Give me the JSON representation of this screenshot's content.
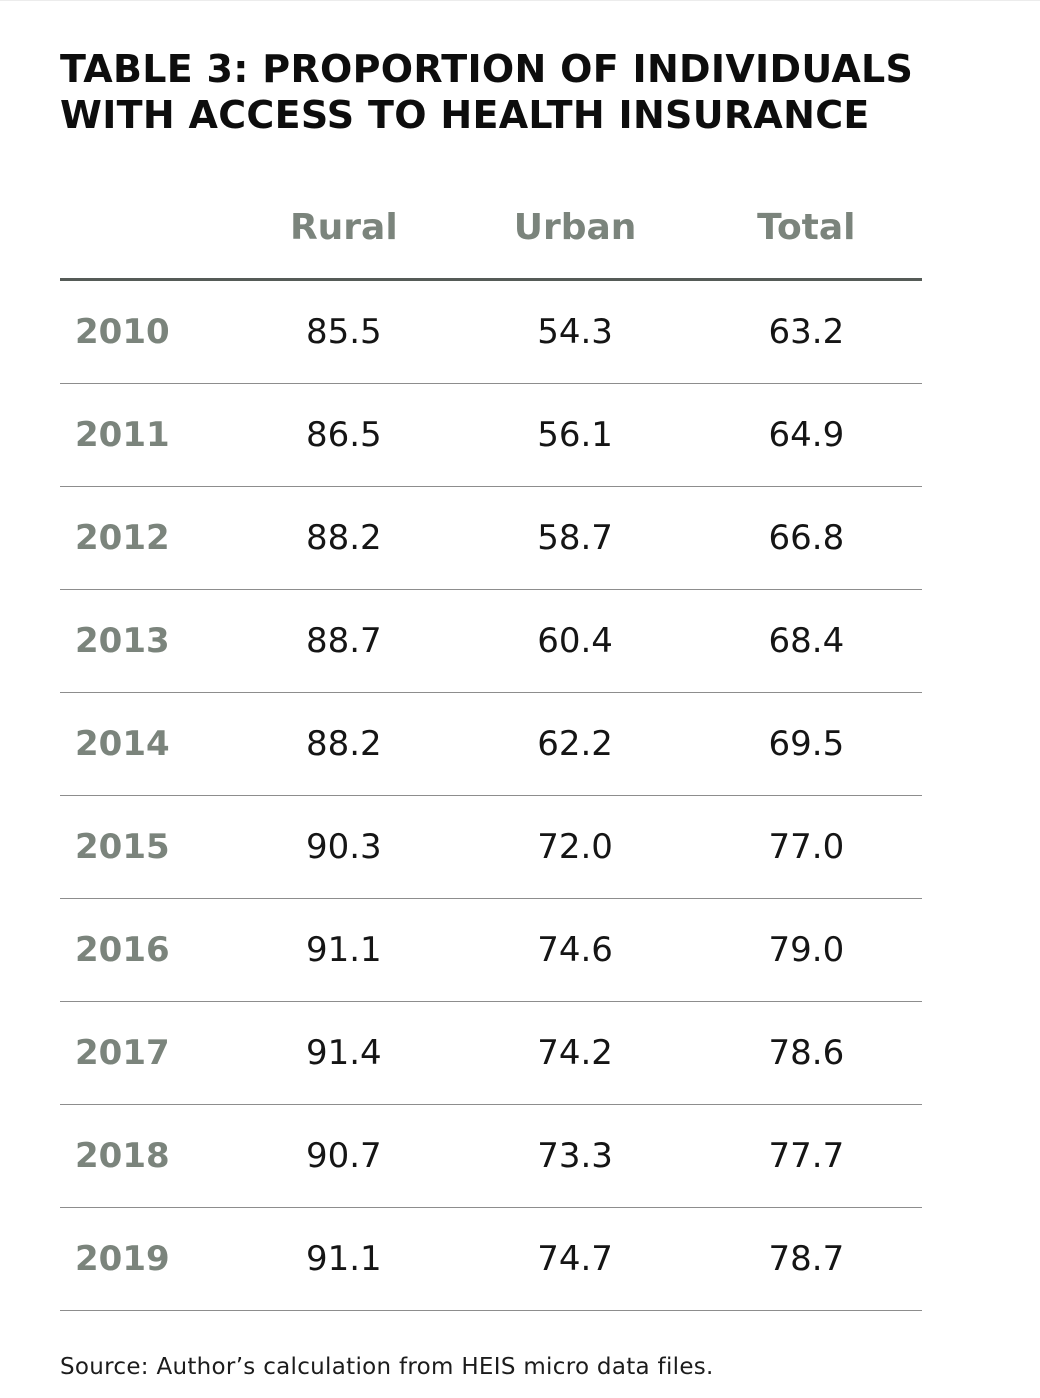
{
  "title": {
    "line1": "TABLE 3: PROPORTION OF INDIVIDUALS",
    "line2": "WITH ACCESS TO HEALTH INSURANCE"
  },
  "table": {
    "columns": [
      "",
      "Rural",
      "Urban",
      "Total"
    ],
    "rows": [
      {
        "year": "2010",
        "rural": "85.5",
        "urban": "54.3",
        "total": "63.2"
      },
      {
        "year": "2011",
        "rural": "86.5",
        "urban": "56.1",
        "total": "64.9"
      },
      {
        "year": "2012",
        "rural": "88.2",
        "urban": "58.7",
        "total": "66.8"
      },
      {
        "year": "2013",
        "rural": "88.7",
        "urban": "60.4",
        "total": "68.4"
      },
      {
        "year": "2014",
        "rural": "88.2",
        "urban": "62.2",
        "total": "69.5"
      },
      {
        "year": "2015",
        "rural": "90.3",
        "urban": "72.0",
        "total": "77.0"
      },
      {
        "year": "2016",
        "rural": "91.1",
        "urban": "74.6",
        "total": "79.0"
      },
      {
        "year": "2017",
        "rural": "91.4",
        "urban": "74.2",
        "total": "78.6"
      },
      {
        "year": "2018",
        "rural": "90.7",
        "urban": "73.3",
        "total": "77.7"
      },
      {
        "year": "2019",
        "rural": "91.1",
        "urban": "74.7",
        "total": "78.7"
      }
    ]
  },
  "source": "Source: Author’s calculation from HEIS micro data files.",
  "colors": {
    "header_text": "#7b847c",
    "year_text": "#7b847c",
    "value_text": "#151515",
    "title_text": "#0d0d0d"
  }
}
